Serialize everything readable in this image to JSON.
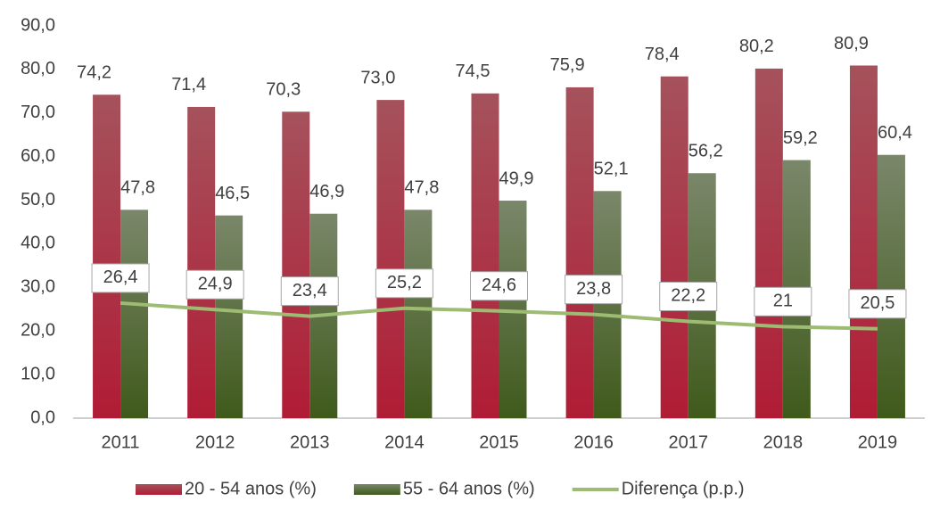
{
  "chart_data": {
    "type": "bar",
    "categories": [
      "2011",
      "2012",
      "2013",
      "2014",
      "2015",
      "2016",
      "2017",
      "2018",
      "2019"
    ],
    "series": [
      {
        "name": "20 - 54 anos (%)",
        "color": "#b01c35",
        "type": "bar",
        "values": [
          74.2,
          71.4,
          70.3,
          73.0,
          74.5,
          75.9,
          78.4,
          80.2,
          80.9
        ],
        "value_labels": [
          "74,2",
          "71,4",
          "70,3",
          "73,0",
          "74,5",
          "75,9",
          "78,4",
          "80,2",
          "80,9"
        ]
      },
      {
        "name": "55 - 64 anos (%)",
        "color": "#4b6125",
        "type": "bar",
        "values": [
          47.8,
          46.5,
          46.9,
          47.8,
          49.9,
          52.1,
          56.2,
          59.2,
          60.4
        ],
        "value_labels": [
          "47,8",
          "46,5",
          "46,9",
          "47,8",
          "49,9",
          "52,1",
          "56,2",
          "59,2",
          "60,4"
        ]
      },
      {
        "name": "Diferença (p.p.)",
        "color": "#9dbb72",
        "type": "line",
        "values": [
          26.4,
          24.9,
          23.4,
          25.2,
          24.6,
          23.8,
          22.2,
          21,
          20.5
        ],
        "value_labels": [
          "26,4",
          "24,9",
          "23,4",
          "25,2",
          "24,6",
          "23,8",
          "22,2",
          "21",
          "20,5"
        ]
      }
    ],
    "ylim": [
      0,
      90
    ],
    "yticks": [
      {
        "value": 0,
        "label": "0,0"
      },
      {
        "value": 10,
        "label": "10,0"
      },
      {
        "value": 20,
        "label": "20,0"
      },
      {
        "value": 30,
        "label": "30,0"
      },
      {
        "value": 40,
        "label": "40,0"
      },
      {
        "value": 50,
        "label": "50,0"
      },
      {
        "value": 60,
        "label": "60,0"
      },
      {
        "value": 70,
        "label": "70,0"
      },
      {
        "value": 80,
        "label": "80,0"
      },
      {
        "value": 90,
        "label": "90,0"
      }
    ],
    "grid": false,
    "legend": "bottom"
  }
}
